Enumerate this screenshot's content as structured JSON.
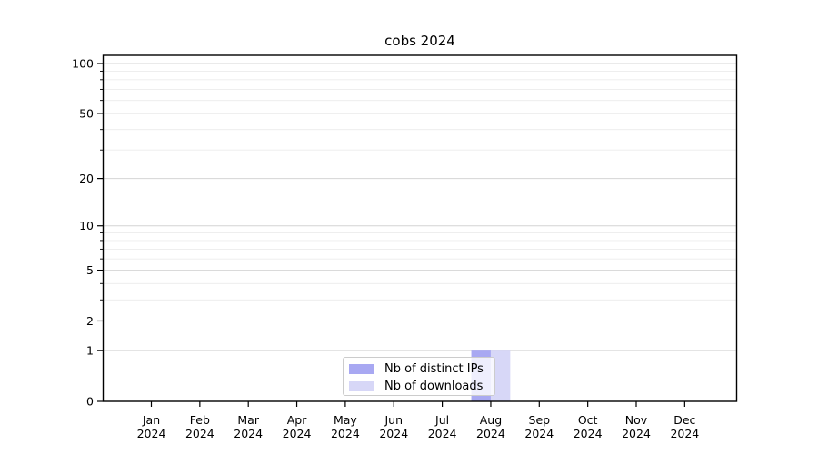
{
  "chart_data": {
    "type": "bar",
    "title": "cobs 2024",
    "categories": [
      "Jan",
      "Feb",
      "Mar",
      "Apr",
      "May",
      "Jun",
      "Jul",
      "Aug",
      "Sep",
      "Oct",
      "Nov",
      "Dec"
    ],
    "year_label": "2024",
    "series": [
      {
        "name": "Nb of distinct IPs",
        "color": "#a8a8f2",
        "values": [
          0,
          0,
          0,
          0,
          0,
          0,
          0,
          1,
          0,
          0,
          0,
          0
        ]
      },
      {
        "name": "Nb of downloads",
        "color": "#d7d7f7",
        "values": [
          0,
          0,
          0,
          0,
          0,
          0,
          0,
          1,
          0,
          0,
          0,
          0
        ]
      }
    ],
    "xlabel": "",
    "ylabel": "",
    "y_scale": "log1p",
    "ylim": [
      0,
      112
    ],
    "y_major_ticks": [
      0,
      1,
      2,
      5,
      10,
      20,
      50,
      100
    ],
    "y_minor_ticks": [
      3,
      4,
      6,
      7,
      8,
      9,
      30,
      40,
      60,
      70,
      80,
      90
    ],
    "grid": "horizontal",
    "legend_position": "lower center inside plot"
  },
  "colors": {
    "distinct_ips_bar": "#a8a8f2",
    "downloads_bar": "#d7d7f7",
    "major_grid": "#d4d4d4",
    "minor_grid": "#ececec",
    "axis": "#000000",
    "legend_border": "#cccccc",
    "background": "#ffffff"
  }
}
